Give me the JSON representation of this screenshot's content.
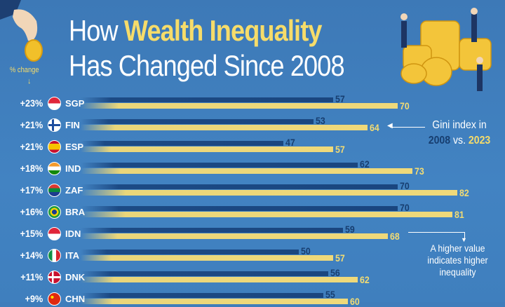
{
  "title": {
    "line1_pre": "How ",
    "line1_highlight": "Wealth Inequality",
    "line2": "Has Changed Since 2008"
  },
  "pct_change_header": "% change",
  "legend": {
    "text_pre": "Gini index in",
    "year_old": "2008",
    "vs": " vs. ",
    "year_new": "2023"
  },
  "note": "A higher value indicates higher inequality",
  "colors": {
    "background": "#3f7dbb",
    "bar_2008": "#1a467f",
    "bar_2023": "#efd97a",
    "highlight": "#f6dc6a"
  },
  "chart_data": {
    "type": "bar",
    "orientation": "horizontal",
    "title": "How Wealth Inequality Has Changed Since 2008",
    "categories": [
      "SGP",
      "FIN",
      "ESP",
      "IND",
      "ZAF",
      "BRA",
      "IDN",
      "ITA",
      "DNK",
      "CHN"
    ],
    "series": [
      {
        "name": "2008",
        "values": [
          57,
          53,
          47,
          62,
          70,
          70,
          59,
          50,
          56,
          55
        ]
      },
      {
        "name": "2023",
        "values": [
          70,
          64,
          57,
          73,
          82,
          81,
          68,
          57,
          62,
          60
        ]
      }
    ],
    "pct_change": [
      "+23%",
      "+21%",
      "+21%",
      "+18%",
      "+17%",
      "+16%",
      "+15%",
      "+14%",
      "+11%",
      "+9%"
    ],
    "flags": [
      "singapore",
      "finland",
      "spain",
      "india",
      "south-africa",
      "brazil",
      "indonesia",
      "italy",
      "denmark",
      "china"
    ],
    "grid": false,
    "legend_placement": "right"
  }
}
